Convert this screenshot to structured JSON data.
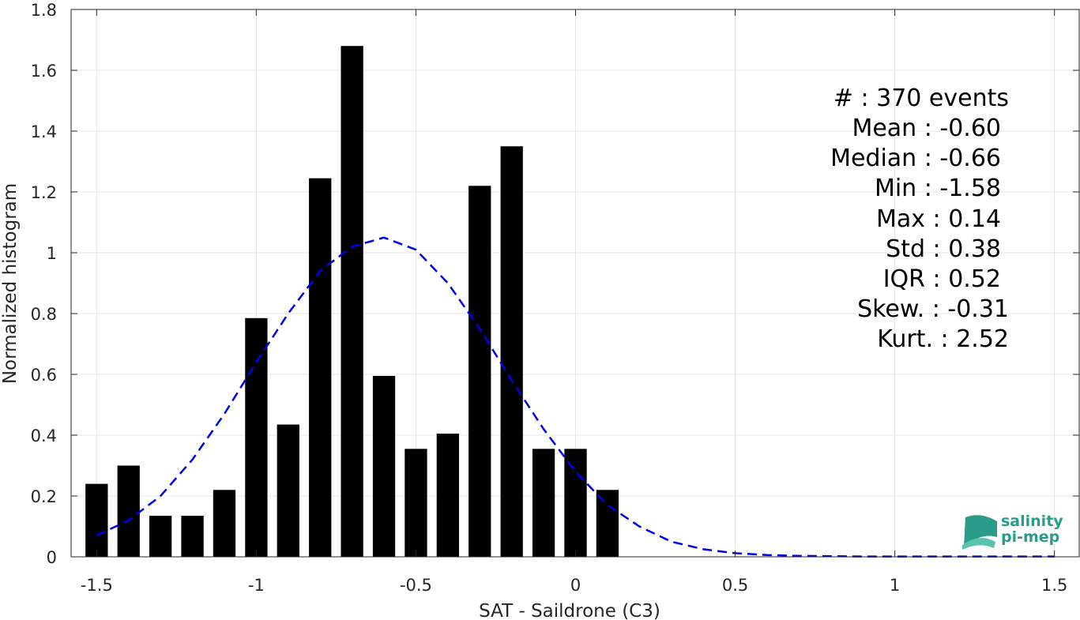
{
  "chart_data": {
    "type": "bar",
    "xlabel": "SAT - Saildrone (C3)",
    "ylabel": "Normalized histogram",
    "xlim": [
      -1.58,
      1.58
    ],
    "ylim": [
      0,
      1.8
    ],
    "grid": true,
    "xticks": [
      -1.5,
      -1,
      -0.5,
      0,
      0.5,
      1,
      1.5
    ],
    "xtick_labels": [
      "-1.5",
      "-1",
      "-0.5",
      "0",
      "0.5",
      "1",
      "1.5"
    ],
    "yticks": [
      0,
      0.2,
      0.4,
      0.6,
      0.8,
      1,
      1.2,
      1.4,
      1.6,
      1.8
    ],
    "ytick_labels": [
      "0",
      "0.2",
      "0.4",
      "0.6",
      "0.8",
      "1",
      "1.2",
      "1.4",
      "1.6",
      "1.8"
    ],
    "bar_width": 0.07,
    "bars": {
      "x": [
        -1.5,
        -1.4,
        -1.3,
        -1.2,
        -1.1,
        -1.0,
        -0.9,
        -0.8,
        -0.7,
        -0.6,
        -0.5,
        -0.4,
        -0.3,
        -0.2,
        -0.1,
        0.0,
        0.1
      ],
      "values": [
        0.24,
        0.3,
        0.135,
        0.135,
        0.22,
        0.785,
        0.435,
        1.245,
        1.68,
        0.595,
        0.355,
        0.405,
        1.22,
        1.35,
        0.355,
        0.355,
        0.22
      ],
      "color": "#000000"
    },
    "fit_curve": {
      "style": "dashed",
      "color": "#0000ee",
      "x": [
        -1.5,
        -1.4,
        -1.3,
        -1.2,
        -1.1,
        -1.0,
        -0.9,
        -0.8,
        -0.7,
        -0.6,
        -0.5,
        -0.4,
        -0.3,
        -0.2,
        -0.1,
        0.0,
        0.1,
        0.2,
        0.3,
        0.4,
        0.5,
        0.6,
        0.7,
        0.8,
        0.9,
        1.0,
        1.1,
        1.2,
        1.3,
        1.4,
        1.5
      ],
      "y": [
        0.07,
        0.12,
        0.2,
        0.32,
        0.47,
        0.64,
        0.8,
        0.94,
        1.02,
        1.05,
        1.01,
        0.9,
        0.75,
        0.58,
        0.42,
        0.28,
        0.17,
        0.1,
        0.05,
        0.025,
        0.012,
        0.006,
        0.003,
        0.002,
        0.001,
        0.001,
        0.001,
        0.001,
        0.001,
        0.001,
        0.001
      ]
    }
  },
  "stats": {
    "count": "#  : 370 events",
    "mean": "Mean : -0.60",
    "median": "Median : -0.66",
    "min": "Min : -1.58",
    "max": "Max : 0.14",
    "std": "Std : 0.38",
    "iqr": "IQR : 0.52",
    "skew": "Skew. : -0.31",
    "kurt": "Kurt. : 2.52"
  },
  "logo": {
    "line1": "salinity",
    "line2": "pi-mep",
    "colors": [
      "#2a9d8a",
      "#5cc2b0",
      "#a8e0d4"
    ]
  }
}
